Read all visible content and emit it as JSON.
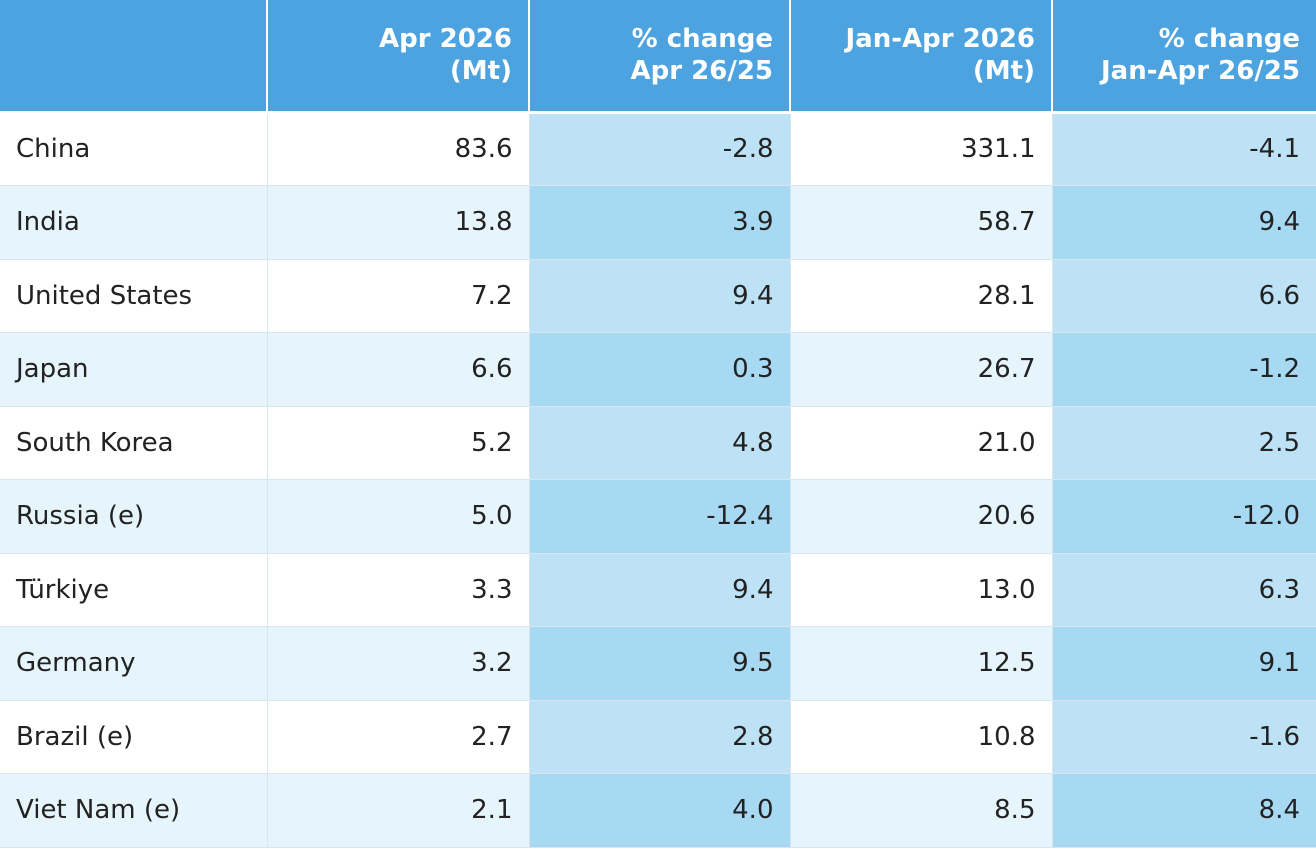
{
  "table": {
    "headers": [
      {
        "lines": [
          ""
        ]
      },
      {
        "lines": [
          "Apr 2026",
          "(Mt)"
        ]
      },
      {
        "lines": [
          "% change",
          "Apr 26/25"
        ]
      },
      {
        "lines": [
          "Jan-Apr 2026",
          "(Mt)"
        ]
      },
      {
        "lines": [
          "% change",
          "Jan-Apr 26/25"
        ]
      }
    ],
    "rows": [
      {
        "country": "China",
        "apr_2026_mt": "83.6",
        "pct_change_apr": "-2.8",
        "jan_apr_2026_mt": "331.1",
        "pct_change_jan_apr": "-4.1"
      },
      {
        "country": "India",
        "apr_2026_mt": "13.8",
        "pct_change_apr": "3.9",
        "jan_apr_2026_mt": "58.7",
        "pct_change_jan_apr": "9.4"
      },
      {
        "country": "United States",
        "apr_2026_mt": "7.2",
        "pct_change_apr": "9.4",
        "jan_apr_2026_mt": "28.1",
        "pct_change_jan_apr": "6.6"
      },
      {
        "country": "Japan",
        "apr_2026_mt": "6.6",
        "pct_change_apr": "0.3",
        "jan_apr_2026_mt": "26.7",
        "pct_change_jan_apr": "-1.2"
      },
      {
        "country": "South Korea",
        "apr_2026_mt": "5.2",
        "pct_change_apr": "4.8",
        "jan_apr_2026_mt": "21.0",
        "pct_change_jan_apr": "2.5"
      },
      {
        "country": "Russia (e)",
        "apr_2026_mt": "5.0",
        "pct_change_apr": "-12.4",
        "jan_apr_2026_mt": "20.6",
        "pct_change_jan_apr": "-12.0"
      },
      {
        "country": "Türkiye",
        "apr_2026_mt": "3.3",
        "pct_change_apr": "9.4",
        "jan_apr_2026_mt": "13.0",
        "pct_change_jan_apr": "6.3"
      },
      {
        "country": "Germany",
        "apr_2026_mt": "3.2",
        "pct_change_apr": "9.5",
        "jan_apr_2026_mt": "12.5",
        "pct_change_jan_apr": "9.1"
      },
      {
        "country": "Brazil (e)",
        "apr_2026_mt": "2.7",
        "pct_change_apr": "2.8",
        "jan_apr_2026_mt": "10.8",
        "pct_change_jan_apr": "-1.6"
      },
      {
        "country": "Viet Nam (e)",
        "apr_2026_mt": "2.1",
        "pct_change_apr": "4.0",
        "jan_apr_2026_mt": "8.5",
        "pct_change_jan_apr": "8.4"
      }
    ]
  },
  "colors": {
    "header_bg": "#4ca3e0",
    "header_text": "#ffffff",
    "row_plain_odd": "#ffffff",
    "row_plain_even": "#e6f4fc",
    "row_shaded_odd": "#bde2f6",
    "row_shaded_even": "#a8d9f3"
  }
}
